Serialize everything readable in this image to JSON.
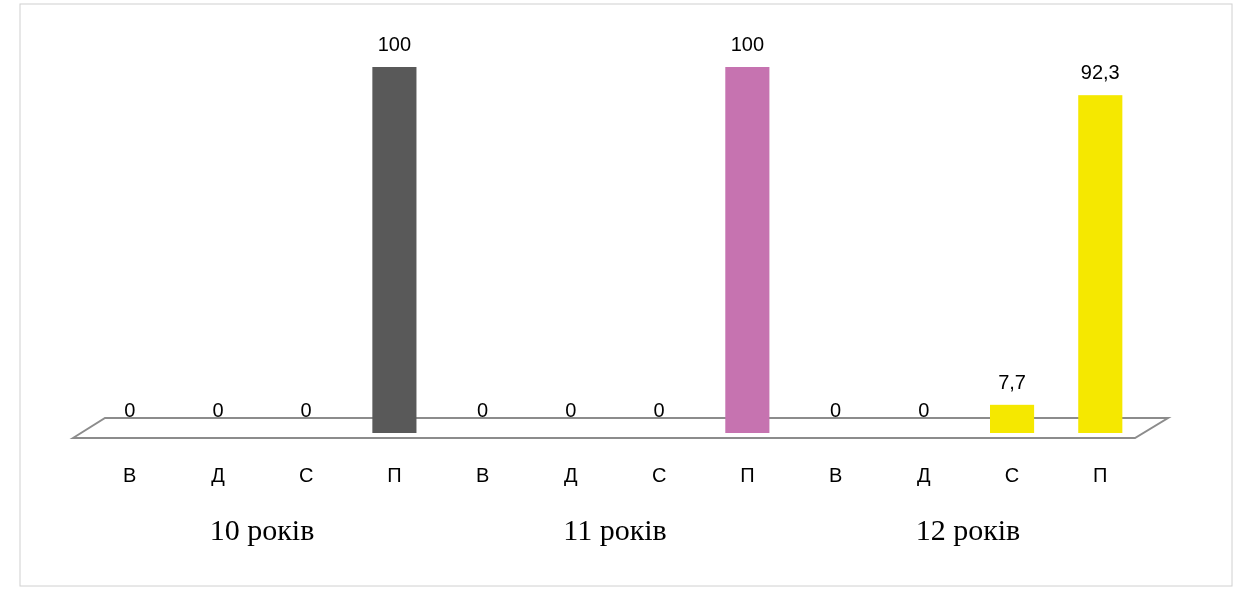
{
  "chart_data": {
    "type": "bar",
    "categories": [
      "В",
      "Д",
      "С",
      "П",
      "В",
      "Д",
      "С",
      "П",
      "В",
      "Д",
      "С",
      "П"
    ],
    "ylim": [
      0,
      100
    ],
    "series": [
      {
        "color": "#595959",
        "values": [
          0,
          0,
          0,
          100,
          null,
          null,
          null,
          null,
          null,
          null,
          null,
          null
        ],
        "value_labels": [
          "0",
          "0",
          "0",
          "100",
          null,
          null,
          null,
          null,
          null,
          null,
          null,
          null
        ]
      },
      {
        "color": "#c673b0",
        "values": [
          null,
          null,
          null,
          null,
          0,
          0,
          0,
          100,
          null,
          null,
          null,
          null
        ],
        "value_labels": [
          null,
          null,
          null,
          null,
          "0",
          "0",
          "0",
          "100",
          null,
          null,
          null,
          null
        ]
      },
      {
        "color": "#f5e800",
        "values": [
          null,
          null,
          null,
          null,
          null,
          null,
          null,
          null,
          0,
          0,
          7.7,
          92.3
        ],
        "value_labels": [
          null,
          null,
          null,
          null,
          null,
          null,
          null,
          null,
          "0",
          "0",
          "7,7",
          "92,3"
        ]
      }
    ],
    "annotations": [
      "10 років",
      "11 років",
      "12 років"
    ],
    "tick_labels": "x"
  }
}
